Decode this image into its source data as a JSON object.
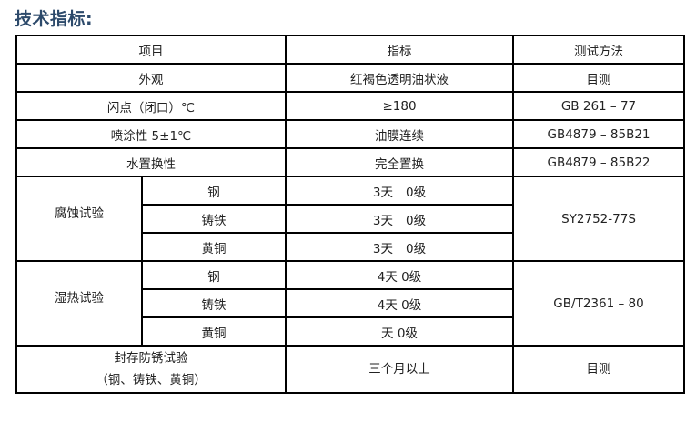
{
  "title": "技术指标:",
  "header": [
    "项目",
    "指标",
    "测试方法"
  ],
  "rows": [
    {
      "item": "外观",
      "spec": "红褐色透明油状液",
      "method": "目测"
    },
    {
      "item": "闪点（闭口）℃",
      "spec": "≥180",
      "method": "GB 261 – 77"
    },
    {
      "item": "喷涂性 5±1℃",
      "spec": "油膜连续",
      "method": "GB4879 – 85B21"
    },
    {
      "item": "水置换性",
      "spec": "完全置换",
      "method": "GB4879 – 85B22"
    }
  ],
  "groups": [
    {
      "item": "腐蚀试验",
      "method": "SY2752-77S",
      "subs": [
        {
          "metal": "钢",
          "days": "3天",
          "grade": "0级"
        },
        {
          "metal": "铸铁",
          "days": "3天",
          "grade": "0级"
        },
        {
          "metal": "黄铜",
          "days": "3天",
          "grade": "0级"
        }
      ]
    },
    {
      "item": "湿热试验",
      "method": "GB/T2361 – 80",
      "subs": [
        {
          "metal": "钢",
          "days": "4天",
          "grade": "0级"
        },
        {
          "metal": "铸铁",
          "days": "4天",
          "grade": "0级"
        },
        {
          "metal": "黄铜",
          "days": "天",
          "grade": "0级"
        }
      ]
    }
  ],
  "last_row": {
    "item_line1": "封存防锈试验",
    "item_line2": "（钢、铸铁、黄铜）",
    "spec": "三个月以上",
    "method": "目测"
  }
}
